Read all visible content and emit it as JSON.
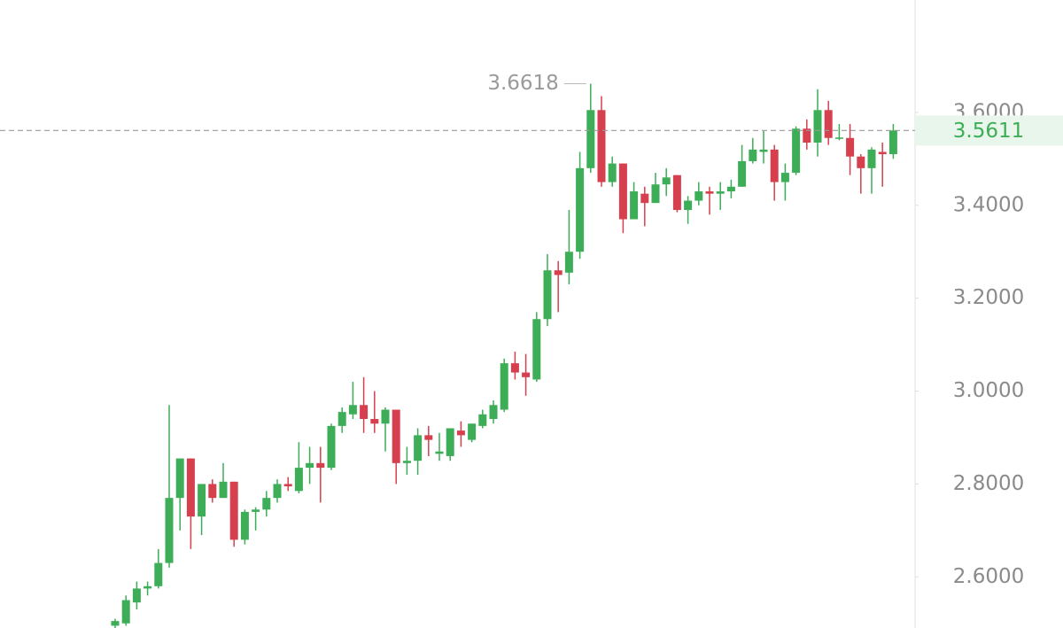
{
  "chart_data": {
    "type": "candlestick",
    "up_color": "#3dae57",
    "down_color": "#d6404e",
    "ylim": [
      2.49,
      3.842
    ],
    "yticks": [
      {
        "value": 2.6,
        "label": "2.6000"
      },
      {
        "value": 2.8,
        "label": "2.8000"
      },
      {
        "value": 3.0,
        "label": "3.0000"
      },
      {
        "value": 3.2,
        "label": "3.2000"
      },
      {
        "value": 3.4,
        "label": "3.4000"
      },
      {
        "value": 3.6,
        "label": "3.6000"
      }
    ],
    "max_price": 3.6618,
    "last_price": 3.5611,
    "open": [
      2.495,
      2.5,
      2.545,
      2.575,
      2.58,
      2.63,
      2.77,
      2.855,
      2.73,
      2.8,
      2.77,
      2.805,
      2.68,
      2.74,
      2.745,
      2.77,
      2.8,
      2.785,
      2.835,
      2.845,
      2.835,
      2.925,
      2.95,
      2.97,
      2.94,
      2.93,
      2.96,
      2.845,
      2.85,
      2.905,
      2.865,
      2.86,
      2.915,
      2.895,
      2.925,
      2.94,
      2.96,
      3.06,
      3.04,
      3.025,
      3.155,
      3.26,
      3.255,
      3.3,
      3.48,
      3.605,
      3.45,
      3.49,
      3.37,
      3.425,
      3.405,
      3.445,
      3.465,
      3.39,
      3.41,
      3.43,
      3.425,
      3.43,
      3.44,
      3.495,
      3.515,
      3.52,
      3.45,
      3.47,
      3.565,
      3.535,
      3.605,
      3.543,
      3.545,
      3.505,
      3.48,
      3.515,
      3.51
    ],
    "high": [
      2.51,
      2.56,
      2.59,
      2.59,
      2.66,
      2.97,
      2.855,
      2.855,
      2.8,
      2.81,
      2.845,
      2.805,
      2.745,
      2.75,
      2.785,
      2.81,
      2.815,
      2.89,
      2.88,
      2.88,
      2.93,
      2.965,
      3.02,
      3.03,
      3.0,
      2.965,
      2.96,
      2.88,
      2.92,
      2.925,
      2.91,
      2.92,
      2.935,
      2.93,
      2.96,
      2.98,
      3.07,
      3.085,
      3.08,
      3.17,
      3.295,
      3.28,
      3.39,
      3.515,
      3.6618,
      3.635,
      3.505,
      3.49,
      3.45,
      3.44,
      3.47,
      3.48,
      3.465,
      3.42,
      3.45,
      3.44,
      3.45,
      3.455,
      3.53,
      3.545,
      3.56,
      3.53,
      3.49,
      3.57,
      3.585,
      3.65,
      3.625,
      3.575,
      3.575,
      3.51,
      3.525,
      3.535,
      3.575
    ],
    "low": [
      2.49,
      2.495,
      2.53,
      2.56,
      2.575,
      2.62,
      2.7,
      2.66,
      2.69,
      2.76,
      2.77,
      2.665,
      2.67,
      2.7,
      2.73,
      2.76,
      2.785,
      2.78,
      2.8,
      2.76,
      2.83,
      2.91,
      2.94,
      2.91,
      2.91,
      2.87,
      2.8,
      2.82,
      2.82,
      2.86,
      2.85,
      2.85,
      2.88,
      2.89,
      2.92,
      2.93,
      2.955,
      3.025,
      2.99,
      3.02,
      3.14,
      3.17,
      3.23,
      3.285,
      3.47,
      3.44,
      3.44,
      3.34,
      3.37,
      3.355,
      3.405,
      3.42,
      3.385,
      3.36,
      3.4,
      3.38,
      3.39,
      3.415,
      3.44,
      3.49,
      3.49,
      3.41,
      3.41,
      3.465,
      3.52,
      3.505,
      3.53,
      3.54,
      3.465,
      3.425,
      3.425,
      3.44,
      3.5
    ],
    "close": [
      2.505,
      2.55,
      2.575,
      2.58,
      2.63,
      2.77,
      2.855,
      2.73,
      2.8,
      2.77,
      2.805,
      2.68,
      2.74,
      2.745,
      2.77,
      2.8,
      2.795,
      2.835,
      2.845,
      2.835,
      2.925,
      2.955,
      2.97,
      2.94,
      2.93,
      2.96,
      2.845,
      2.85,
      2.905,
      2.895,
      2.87,
      2.92,
      2.905,
      2.93,
      2.95,
      2.97,
      3.06,
      3.04,
      3.03,
      3.155,
      3.26,
      3.25,
      3.3,
      3.48,
      3.605,
      3.45,
      3.49,
      3.37,
      3.43,
      3.405,
      3.445,
      3.46,
      3.39,
      3.41,
      3.43,
      3.425,
      3.43,
      3.44,
      3.495,
      3.52,
      3.52,
      3.45,
      3.47,
      3.565,
      3.535,
      3.605,
      3.545,
      3.546,
      3.505,
      3.48,
      3.52,
      3.51,
      3.5611
    ]
  }
}
